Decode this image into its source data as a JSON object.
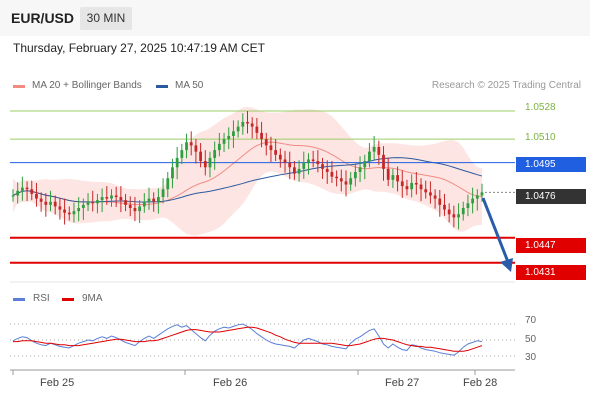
{
  "header": {
    "symbol": "EUR/USD",
    "interval": "30 MIN",
    "datetime": "Thursday, February 27, 2025 10:47:19 AM CET"
  },
  "legend": {
    "ma20": {
      "label": "MA 20 + Bollinger Bands",
      "color": "#f28b82"
    },
    "ma50": {
      "label": "MA 50",
      "color": "#2c5aa0"
    },
    "credit": "Research © 2025 Trading Central"
  },
  "rsi_legend": {
    "rsi": {
      "label": "RSI",
      "color": "#5b7fd6"
    },
    "ma9": {
      "label": "9MA",
      "color": "#e00000"
    }
  },
  "colors": {
    "up": "#2e9e3f",
    "down": "#c62828",
    "resistance": "#9ccc65",
    "pivot": "#1f5fe0",
    "support": "#e00000",
    "current": "#333333",
    "arrow": "#2a5caa"
  },
  "chart_data": {
    "type": "candlestick",
    "x_ticks": [
      "Feb 25",
      "Feb 26",
      "Feb 27",
      "Feb 28"
    ],
    "ylim": [
      1.042,
      1.0535
    ],
    "levels": [
      {
        "label": "1.0528",
        "value": 1.0528,
        "kind": "resistance"
      },
      {
        "label": "1.0510",
        "value": 1.051,
        "kind": "resistance"
      },
      {
        "label": "1.0495",
        "value": 1.0495,
        "kind": "pivot"
      },
      {
        "label": "1.0447",
        "value": 1.0447,
        "kind": "support"
      },
      {
        "label": "1.0431",
        "value": 1.0431,
        "kind": "support"
      }
    ],
    "current_price": {
      "label": "1.0476",
      "value": 1.0476
    },
    "close": [
      1.0474,
      1.0477,
      1.0479,
      1.0478,
      1.0475,
      1.0472,
      1.047,
      1.0468,
      1.047,
      1.0467,
      1.0465,
      1.0463,
      1.0462,
      1.0464,
      1.0466,
      1.0468,
      1.047,
      1.0469,
      1.0471,
      1.0473,
      1.0472,
      1.0474,
      1.0473,
      1.0471,
      1.0468,
      1.0466,
      1.0464,
      1.0467,
      1.047,
      1.0472,
      1.047,
      1.0473,
      1.0478,
      1.0485,
      1.0492,
      1.0498,
      1.0503,
      1.0508,
      1.0506,
      1.0502,
      1.0496,
      1.0492,
      1.0498,
      1.0503,
      1.0507,
      1.051,
      1.0512,
      1.0515,
      1.0518,
      1.0521,
      1.052,
      1.0518,
      1.0514,
      1.051,
      1.0506,
      1.0503,
      1.05,
      1.0497,
      1.0495,
      1.0492,
      1.0488,
      1.0491,
      1.0495,
      1.0497,
      1.0496,
      1.0494,
      1.0491,
      1.0489,
      1.0486,
      1.0485,
      1.0483,
      1.0481,
      1.0485,
      1.0489,
      1.0492,
      1.0496,
      1.0502,
      1.0505,
      1.05,
      1.0491,
      1.0484,
      1.0487,
      1.0483,
      1.048,
      1.0478,
      1.0482,
      1.0481,
      1.0478,
      1.0476,
      1.0474,
      1.0472,
      1.0468,
      1.0465,
      1.0462,
      1.046,
      1.0462,
      1.0466,
      1.0469,
      1.0472,
      1.0474,
      1.0476
    ],
    "rsi": {
      "ylim": [
        20,
        80
      ],
      "ticks": [
        70,
        50,
        30
      ],
      "rsi": [
        49,
        52,
        54,
        53,
        49,
        46,
        44,
        43,
        46,
        44,
        42,
        41,
        40,
        43,
        46,
        48,
        50,
        49,
        52,
        54,
        52,
        55,
        53,
        50,
        47,
        45,
        43,
        48,
        52,
        55,
        52,
        56,
        60,
        64,
        67,
        69,
        66,
        68,
        63,
        58,
        53,
        49,
        56,
        61,
        64,
        66,
        65,
        67,
        69,
        70,
        67,
        63,
        58,
        54,
        50,
        47,
        45,
        44,
        43,
        42,
        40,
        45,
        50,
        52,
        50,
        48,
        45,
        44,
        42,
        41,
        40,
        39,
        46,
        51,
        54,
        58,
        62,
        64,
        55,
        45,
        40,
        45,
        41,
        38,
        37,
        44,
        43,
        40,
        38,
        37,
        36,
        34,
        33,
        32,
        31,
        35,
        41,
        45,
        47,
        49,
        48
      ],
      "ma9": [
        48,
        48,
        49,
        49,
        49,
        48,
        47,
        46,
        46,
        45,
        44,
        44,
        43,
        43,
        43,
        44,
        45,
        46,
        47,
        48,
        49,
        50,
        51,
        51,
        50,
        49,
        48,
        48,
        48,
        49,
        49,
        50,
        52,
        54,
        56,
        58,
        60,
        62,
        63,
        63,
        62,
        61,
        60,
        60,
        60,
        61,
        62,
        63,
        64,
        65,
        66,
        66,
        65,
        63,
        61,
        59,
        56,
        54,
        51,
        49,
        47,
        46,
        46,
        46,
        46,
        46,
        46,
        46,
        46,
        45,
        44,
        43,
        43,
        44,
        45,
        47,
        49,
        51,
        52,
        52,
        51,
        50,
        48,
        46,
        44,
        43,
        42,
        42,
        41,
        41,
        40,
        39,
        38,
        37,
        36,
        36,
        36,
        37,
        39,
        41,
        43
      ]
    }
  }
}
